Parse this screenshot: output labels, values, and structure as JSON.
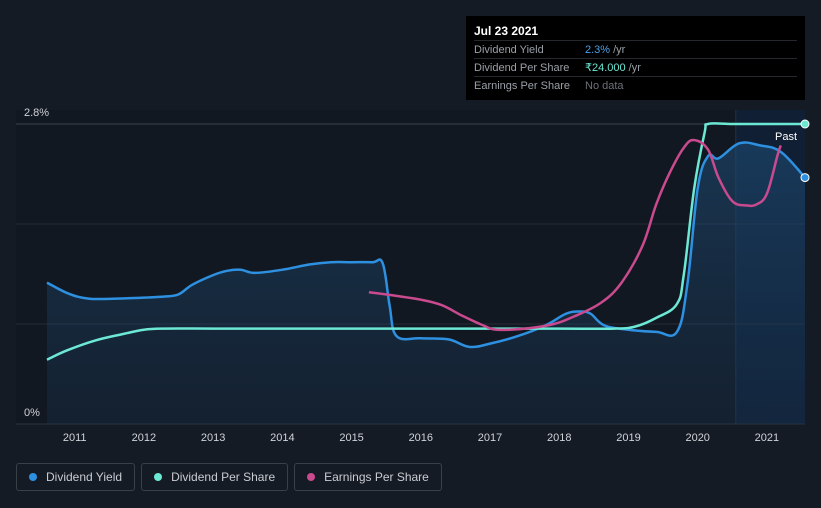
{
  "tooltip": {
    "date": "Jul 23 2021",
    "rows": [
      {
        "label": "Dividend Yield",
        "value": "2.3%",
        "unit": "/yr"
      },
      {
        "label": "Dividend Per Share",
        "value": "₹24.000",
        "unit": "/yr"
      },
      {
        "label": "Earnings Per Share",
        "value": "No data",
        "unit": ""
      }
    ]
  },
  "legend": {
    "items": [
      {
        "label": "Dividend Yield",
        "color": "#2e90e0"
      },
      {
        "label": "Dividend Per Share",
        "color": "#6ce8d4"
      },
      {
        "label": "Earnings Per Share",
        "color": "#c94a8e"
      }
    ]
  },
  "chart_data": {
    "type": "line",
    "ylim": [
      0,
      2.8
    ],
    "ytick_labels": [
      "2.8%",
      "0%"
    ],
    "xlim": [
      2010.6,
      2021.55
    ],
    "xtick_labels": [
      "2011",
      "2012",
      "2013",
      "2014",
      "2015",
      "2016",
      "2017",
      "2018",
      "2019",
      "2020",
      "2021"
    ],
    "xtick_values": [
      2011,
      2012,
      2013,
      2014,
      2015,
      2016,
      2017,
      2018,
      2019,
      2020,
      2021
    ],
    "annotation": "Past",
    "past_region_start": 2020.55,
    "colors": {
      "yield": "#2e90e0",
      "dps": "#6ce8d4",
      "eps": "#c94a8e"
    },
    "series": [
      {
        "name": "Dividend Yield",
        "points": [
          [
            2010.6,
            1.32
          ],
          [
            2010.9,
            1.22
          ],
          [
            2011.2,
            1.17
          ],
          [
            2011.6,
            1.17
          ],
          [
            2012.0,
            1.18
          ],
          [
            2012.3,
            1.19
          ],
          [
            2012.5,
            1.21
          ],
          [
            2012.7,
            1.3
          ],
          [
            2013.0,
            1.39
          ],
          [
            2013.2,
            1.43
          ],
          [
            2013.4,
            1.44
          ],
          [
            2013.6,
            1.41
          ],
          [
            2014.0,
            1.44
          ],
          [
            2014.4,
            1.49
          ],
          [
            2014.7,
            1.51
          ],
          [
            2015.0,
            1.51
          ],
          [
            2015.3,
            1.51
          ],
          [
            2015.45,
            1.5
          ],
          [
            2015.55,
            1.1
          ],
          [
            2015.65,
            0.82
          ],
          [
            2016.0,
            0.8
          ],
          [
            2016.4,
            0.79
          ],
          [
            2016.7,
            0.72
          ],
          [
            2017.0,
            0.75
          ],
          [
            2017.4,
            0.82
          ],
          [
            2017.8,
            0.92
          ],
          [
            2018.1,
            1.03
          ],
          [
            2018.3,
            1.05
          ],
          [
            2018.45,
            1.03
          ],
          [
            2018.65,
            0.92
          ],
          [
            2019.0,
            0.88
          ],
          [
            2019.4,
            0.86
          ],
          [
            2019.7,
            0.86
          ],
          [
            2019.85,
            1.3
          ],
          [
            2020.0,
            2.2
          ],
          [
            2020.15,
            2.5
          ],
          [
            2020.3,
            2.48
          ],
          [
            2020.6,
            2.62
          ],
          [
            2020.9,
            2.6
          ],
          [
            2021.2,
            2.54
          ],
          [
            2021.55,
            2.3
          ]
        ]
      },
      {
        "name": "Dividend Per Share",
        "points": [
          [
            2010.6,
            0.6
          ],
          [
            2010.9,
            0.69
          ],
          [
            2011.3,
            0.78
          ],
          [
            2011.7,
            0.84
          ],
          [
            2012.0,
            0.88
          ],
          [
            2012.3,
            0.89
          ],
          [
            2013.0,
            0.89
          ],
          [
            2014.0,
            0.89
          ],
          [
            2015.0,
            0.89
          ],
          [
            2016.0,
            0.89
          ],
          [
            2017.0,
            0.89
          ],
          [
            2018.0,
            0.89
          ],
          [
            2018.8,
            0.89
          ],
          [
            2019.1,
            0.91
          ],
          [
            2019.4,
            0.99
          ],
          [
            2019.7,
            1.12
          ],
          [
            2019.8,
            1.4
          ],
          [
            2019.95,
            2.2
          ],
          [
            2020.1,
            2.72
          ],
          [
            2020.15,
            2.8
          ],
          [
            2020.5,
            2.8
          ],
          [
            2021.0,
            2.8
          ],
          [
            2021.55,
            2.8
          ]
        ]
      },
      {
        "name": "Earnings Per Share",
        "points": [
          [
            2015.25,
            1.23
          ],
          [
            2015.6,
            1.2
          ],
          [
            2016.0,
            1.16
          ],
          [
            2016.3,
            1.11
          ],
          [
            2016.6,
            1.01
          ],
          [
            2016.9,
            0.92
          ],
          [
            2017.1,
            0.88
          ],
          [
            2017.5,
            0.89
          ],
          [
            2017.9,
            0.93
          ],
          [
            2018.2,
            1.0
          ],
          [
            2018.6,
            1.13
          ],
          [
            2018.9,
            1.32
          ],
          [
            2019.2,
            1.66
          ],
          [
            2019.4,
            2.05
          ],
          [
            2019.6,
            2.35
          ],
          [
            2019.8,
            2.58
          ],
          [
            2019.95,
            2.65
          ],
          [
            2020.15,
            2.56
          ],
          [
            2020.3,
            2.3
          ],
          [
            2020.5,
            2.08
          ],
          [
            2020.7,
            2.04
          ],
          [
            2020.85,
            2.05
          ],
          [
            2021.0,
            2.15
          ],
          [
            2021.15,
            2.5
          ],
          [
            2021.2,
            2.6
          ]
        ]
      }
    ]
  }
}
